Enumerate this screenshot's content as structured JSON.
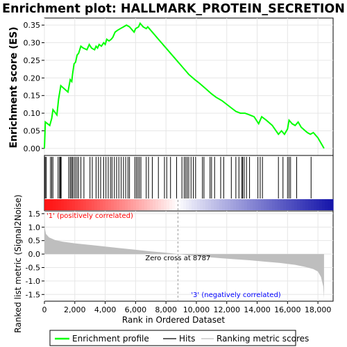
{
  "chart_data": {
    "type": "line",
    "title": "Enrichment plot: HALLMARK_PROTEIN_SECRETION",
    "top_panel": {
      "ylabel": "Enrichment score (ES)",
      "ylim": [
        -0.02,
        0.37
      ],
      "yticks": [
        0.0,
        0.05,
        0.1,
        0.15,
        0.2,
        0.25,
        0.3,
        0.35
      ],
      "ytick_labels": [
        "0.00",
        "0.05",
        "0.10",
        "0.15",
        "0.20",
        "0.25",
        "0.30",
        "0.35"
      ],
      "grid": true,
      "series": [
        {
          "name": "Enrichment profile",
          "color": "#00ff00",
          "x": [
            0,
            60,
            350,
            480,
            560,
            820,
            930,
            1080,
            1550,
            1700,
            1800,
            1850,
            1950,
            2050,
            2150,
            2250,
            2400,
            2550,
            2800,
            2950,
            3100,
            3300,
            3400,
            3500,
            3600,
            3750,
            3900,
            4000,
            4100,
            4250,
            4400,
            4500,
            4650,
            4800,
            5000,
            5200,
            5400,
            5600,
            5900,
            6000,
            6200,
            6300,
            6500,
            6700,
            6800,
            7100,
            7500,
            8000,
            8500,
            9000,
            9500,
            9900,
            10200,
            10600,
            11000,
            11300,
            11700,
            12000,
            12300,
            12600,
            12900,
            13200,
            13500,
            13800,
            14100,
            14200,
            14300,
            14600,
            15000,
            15400,
            15600,
            15800,
            16000,
            16100,
            16300,
            16500,
            16700,
            16900,
            17300,
            17500,
            17700,
            18000,
            18400
          ],
          "y": [
            0.0,
            0.075,
            0.065,
            0.085,
            0.11,
            0.095,
            0.14,
            0.178,
            0.16,
            0.195,
            0.19,
            0.21,
            0.24,
            0.245,
            0.265,
            0.27,
            0.29,
            0.285,
            0.28,
            0.295,
            0.285,
            0.28,
            0.29,
            0.285,
            0.295,
            0.29,
            0.3,
            0.295,
            0.31,
            0.305,
            0.31,
            0.315,
            0.33,
            0.335,
            0.34,
            0.345,
            0.35,
            0.345,
            0.33,
            0.34,
            0.345,
            0.355,
            0.345,
            0.34,
            0.345,
            0.33,
            0.31,
            0.285,
            0.26,
            0.235,
            0.21,
            0.195,
            0.185,
            0.17,
            0.155,
            0.145,
            0.135,
            0.125,
            0.115,
            0.105,
            0.1,
            0.1,
            0.095,
            0.09,
            0.07,
            0.08,
            0.09,
            0.08,
            0.065,
            0.04,
            0.05,
            0.04,
            0.055,
            0.08,
            0.07,
            0.065,
            0.075,
            0.06,
            0.045,
            0.04,
            0.045,
            0.03,
            0.0
          ]
        }
      ]
    },
    "hits_panel": {
      "legend_name": "Hits",
      "hit_ranks": [
        50,
        120,
        400,
        480,
        560,
        900,
        1000,
        1050,
        1100,
        1600,
        1700,
        1780,
        1850,
        1950,
        2050,
        2150,
        2250,
        2400,
        2600,
        3000,
        3150,
        3400,
        3550,
        3700,
        3900,
        4050,
        4200,
        4350,
        4450,
        4600,
        4750,
        4900,
        5050,
        5200,
        5350,
        5500,
        5600,
        5950,
        6050,
        6150,
        6250,
        6350,
        6700,
        6850,
        7100,
        7500,
        7900,
        8050,
        8300,
        8700,
        9050,
        9200,
        9300,
        9400,
        9500,
        9650,
        9800,
        9950,
        10400,
        10500,
        10900,
        11000,
        11200,
        11600,
        11800,
        12300,
        12600,
        12800,
        13000,
        13050,
        13150,
        13300,
        13500,
        14050,
        14200,
        14350,
        15400,
        15700,
        16000,
        16100,
        16200,
        16600,
        17550
      ]
    },
    "ranking_panel": {
      "legend_name": "Ranking metric scores",
      "ylabel": "Ranked list metric (Signal2Noise)",
      "xlabel": "Rank in Ordered Dataset",
      "ylim": [
        -1.75,
        1.6
      ],
      "yticks": [
        -1.5,
        -1.0,
        -0.5,
        0.0,
        0.5,
        1.0,
        1.5
      ],
      "ytick_labels": [
        "-1.5",
        "-1.0",
        "-0.5",
        "0.0",
        "0.5",
        "1.0",
        "1.5"
      ],
      "xlim": [
        0,
        19000
      ],
      "xticks": [
        0,
        2000,
        4000,
        6000,
        8000,
        10000,
        12000,
        14000,
        16000,
        18000
      ],
      "xtick_labels": [
        "0",
        "2,000",
        "4,000",
        "6,000",
        "8,000",
        "10,000",
        "12,000",
        "14,000",
        "16,000",
        "18,000"
      ],
      "x": [
        0,
        30,
        100,
        300,
        700,
        1200,
        2000,
        3000,
        4000,
        5000,
        6000,
        7000,
        8000,
        8787,
        9500,
        10500,
        11500,
        12500,
        13500,
        14500,
        15500,
        16500,
        17200,
        17700,
        18000,
        18200,
        18350,
        18400
      ],
      "y": [
        1.5,
        0.95,
        0.75,
        0.62,
        0.52,
        0.46,
        0.4,
        0.34,
        0.28,
        0.22,
        0.16,
        0.1,
        0.05,
        0.0,
        -0.05,
        -0.1,
        -0.15,
        -0.19,
        -0.23,
        -0.28,
        -0.33,
        -0.4,
        -0.48,
        -0.56,
        -0.65,
        -0.85,
        -1.2,
        -1.65
      ],
      "zero_cross_label": "Zero cross at 8787",
      "zero_cross": 8787,
      "positive_label": "'1' (positively correlated)",
      "negative_label": "'3' (negatively correlated)",
      "positive_color": "#ff0000",
      "negative_color": "#0000ff"
    },
    "legend": {
      "placement": "bottom",
      "entries": [
        "Enrichment profile",
        "Hits",
        "Ranking metric scores"
      ]
    },
    "colors": {
      "profile": "#00ff00",
      "hits": "#000000",
      "ranking_fill": "#bebebe",
      "grid": "#e6e6e6",
      "heatmap_start": "#ff0000",
      "heatmap_mid": "#ffffff",
      "heatmap_end": "#0000aa"
    }
  }
}
